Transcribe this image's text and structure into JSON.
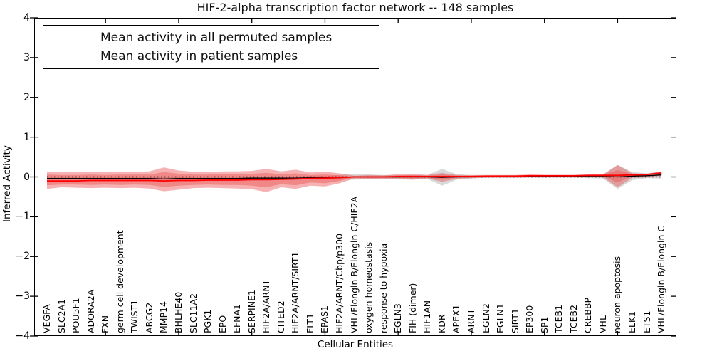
{
  "title": "HIF-2-alpha transcription factor network -- 148 samples",
  "axes": {
    "x_label": "Cellular Entities",
    "y_label": "Inferred Activity",
    "y_tick_labels": [
      "4",
      "3",
      "2",
      "1",
      "0",
      "−1",
      "−2",
      "−3",
      "−4"
    ],
    "y_tick_values": [
      4,
      3,
      2,
      1,
      0,
      -1,
      -2,
      -3,
      -4
    ],
    "x_major_tick_indices": [
      4,
      9,
      14,
      19,
      24,
      29,
      34,
      39
    ]
  },
  "legend": {
    "items": [
      {
        "label": "Mean activity in all permuted samples",
        "color": "#000000"
      },
      {
        "label": "Mean activity in patient samples",
        "color": "#ff0000"
      }
    ]
  },
  "chart_data": {
    "type": "line",
    "title": "HIF-2-alpha transcription factor network -- 148 samples",
    "xlabel": "Cellular Entities",
    "ylabel": "Inferred Activity",
    "ylim": [
      -4,
      4
    ],
    "grid": false,
    "legend_position": "upper-left",
    "zero_line": {
      "style": "dotted",
      "color": "#000000",
      "y": 0
    },
    "categories": [
      "VEGFA",
      "SLC2A1",
      "POU5F1",
      "ADORA2A",
      "FXN",
      "germ cell development",
      "TWIST1",
      "ABCG2",
      "MMP14",
      "BHLHE40",
      "SLC11A2",
      "PGK1",
      "EPO",
      "EFNA1",
      "SERPINE1",
      "HIF2A/ARNT",
      "CITED2",
      "HIF2A/ARNT/SIRT1",
      "FLT1",
      "EPAS1",
      "HIF2A/ARNT/Cbp/p300",
      "VHL/Elongin B/Elongin C/HIF2A",
      "oxygen homeostasis",
      "response to hypoxia",
      "EGLN3",
      "FIH (dimer)",
      "HIF1AN",
      "KDR",
      "APEX1",
      "ARNT",
      "EGLN2",
      "EGLN1",
      "SIRT1",
      "EP300",
      "SP1",
      "TCEB1",
      "TCEB2",
      "CREBBP",
      "VHL",
      "neuron apoptosis",
      "ELK1",
      "ETS1",
      "VHL/Elongin B/Elongin C"
    ],
    "series": [
      {
        "name": "Mean activity in all permuted samples",
        "color": "#000000",
        "width": 1.3,
        "values": [
          -0.04,
          -0.04,
          -0.04,
          -0.04,
          -0.04,
          -0.04,
          -0.04,
          -0.04,
          -0.05,
          -0.04,
          -0.04,
          -0.04,
          -0.04,
          -0.04,
          -0.03,
          -0.03,
          -0.03,
          -0.03,
          -0.02,
          -0.02,
          -0.01,
          0,
          0,
          0,
          0,
          0,
          0,
          -0.01,
          0,
          0,
          0.01,
          0.01,
          0.01,
          0.01,
          0.01,
          0.01,
          0.01,
          0.01,
          0.01,
          0,
          0.02,
          0.03,
          0.05
        ]
      },
      {
        "name": "Mean activity in patient samples",
        "color": "#ff0000",
        "width": 1.8,
        "values": [
          -0.1,
          -0.1,
          -0.1,
          -0.09,
          -0.09,
          -0.09,
          -0.09,
          -0.09,
          -0.1,
          -0.09,
          -0.09,
          -0.08,
          -0.08,
          -0.08,
          -0.07,
          -0.07,
          -0.06,
          -0.05,
          -0.04,
          -0.03,
          -0.02,
          0,
          0,
          0,
          0.01,
          0.01,
          0.01,
          0.01,
          0.01,
          0.01,
          0.02,
          0.02,
          0.02,
          0.03,
          0.03,
          0.03,
          0.03,
          0.04,
          0.04,
          0.04,
          0.05,
          0.06,
          0.1
        ]
      }
    ],
    "bands": [
      {
        "name": "permuted-samples-std-band",
        "color": "rgba(128,128,128,0.30)",
        "upper": [
          -0.01,
          -0.01,
          -0.01,
          -0.01,
          -0.01,
          -0.01,
          -0.01,
          -0.01,
          0,
          -0.01,
          -0.01,
          -0.01,
          -0.01,
          -0.01,
          0,
          0,
          0,
          0,
          0.02,
          0.02,
          0.05,
          0.07,
          0.06,
          0.05,
          0.04,
          0.04,
          0.05,
          0.2,
          0.07,
          0.04,
          0.04,
          0.04,
          0.04,
          0.04,
          0.04,
          0.04,
          0.04,
          0.05,
          0.06,
          0.3,
          0.12,
          0.09,
          0.14
        ],
        "lower": [
          -0.07,
          -0.07,
          -0.07,
          -0.07,
          -0.07,
          -0.07,
          -0.07,
          -0.07,
          -0.09,
          -0.07,
          -0.07,
          -0.07,
          -0.07,
          -0.07,
          -0.06,
          -0.06,
          -0.06,
          -0.06,
          -0.06,
          -0.06,
          -0.07,
          -0.07,
          -0.06,
          -0.05,
          -0.04,
          -0.04,
          -0.05,
          -0.22,
          -0.07,
          -0.04,
          -0.02,
          -0.02,
          -0.02,
          -0.02,
          -0.02,
          -0.02,
          -0.02,
          -0.03,
          -0.04,
          -0.3,
          -0.08,
          -0.03,
          -0.04
        ]
      },
      {
        "name": "patient-samples-outer-band",
        "color": "rgba(235,85,85,0.45)",
        "upper": [
          0.13,
          0.12,
          0.12,
          0.13,
          0.12,
          0.13,
          0.13,
          0.14,
          0.24,
          0.16,
          0.13,
          0.13,
          0.14,
          0.14,
          0.15,
          0.2,
          0.14,
          0.18,
          0.11,
          0.13,
          0.09,
          0.03,
          0.05,
          0.04,
          0.07,
          0.08,
          0.05,
          0.1,
          0.05,
          0.05,
          0.05,
          0.05,
          0.05,
          0.06,
          0.05,
          0.05,
          0.05,
          0.06,
          0.06,
          0.3,
          0.09,
          0.08,
          0.14
        ],
        "lower": [
          -0.3,
          -0.26,
          -0.27,
          -0.28,
          -0.27,
          -0.28,
          -0.27,
          -0.29,
          -0.36,
          -0.32,
          -0.28,
          -0.27,
          -0.28,
          -0.29,
          -0.31,
          -0.38,
          -0.26,
          -0.3,
          -0.22,
          -0.24,
          -0.16,
          -0.04,
          -0.05,
          -0.04,
          -0.06,
          -0.07,
          -0.04,
          -0.12,
          -0.05,
          -0.03,
          -0.02,
          -0.02,
          -0.02,
          -0.01,
          -0.01,
          -0.01,
          -0.01,
          -0.01,
          -0.01,
          -0.26,
          -0.02,
          -0.01,
          0.03
        ]
      },
      {
        "name": "patient-samples-inner-band",
        "color": "rgba(235,85,85,0.45)",
        "upper": [
          0.06,
          0.05,
          0.05,
          0.06,
          0.05,
          0.06,
          0.06,
          0.06,
          0.12,
          0.08,
          0.06,
          0.06,
          0.07,
          0.07,
          0.08,
          0.1,
          0.07,
          0.09,
          0.05,
          0.06,
          0.04,
          0.01,
          0.02,
          0.02,
          0.04,
          0.05,
          0.03,
          0.06,
          0.03,
          0.03,
          0.03,
          0.04,
          0.04,
          0.04,
          0.04,
          0.04,
          0.04,
          0.05,
          0.05,
          0.17,
          0.07,
          0.06,
          0.12
        ],
        "lower": [
          -0.21,
          -0.19,
          -0.19,
          -0.2,
          -0.19,
          -0.2,
          -0.19,
          -0.2,
          -0.25,
          -0.22,
          -0.2,
          -0.19,
          -0.2,
          -0.2,
          -0.22,
          -0.26,
          -0.18,
          -0.21,
          -0.14,
          -0.16,
          -0.1,
          -0.01,
          -0.02,
          -0.02,
          -0.03,
          -0.04,
          -0.02,
          -0.07,
          -0.02,
          -0.01,
          -0.01,
          0,
          0,
          0.01,
          0.01,
          0.01,
          0.01,
          0.02,
          0.02,
          -0.14,
          0.02,
          0.03,
          0.06
        ]
      }
    ]
  }
}
